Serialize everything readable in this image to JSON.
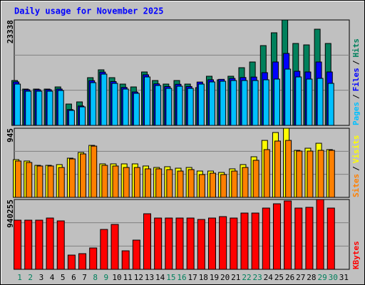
{
  "chart_data": [
    {
      "type": "bar",
      "title": "Daily usage for November 2025",
      "categories": [
        "1",
        "2",
        "3",
        "4",
        "5",
        "6",
        "7",
        "8",
        "9",
        "10",
        "11",
        "12",
        "13",
        "14",
        "15",
        "16",
        "17",
        "18",
        "19",
        "20",
        "21",
        "22",
        "23",
        "24",
        "25",
        "26",
        "27",
        "28",
        "29",
        "30",
        "31"
      ],
      "category_colors": [
        "#00805c",
        "#00805c",
        "#000000",
        "#000000",
        "#000000",
        "#000000",
        "#000000",
        "#00805c",
        "#00805c",
        "#000000",
        "#000000",
        "#000000",
        "#000000",
        "#000000",
        "#00805c",
        "#00805c",
        "#000000",
        "#000000",
        "#000000",
        "#000000",
        "#000000",
        "#00805c",
        "#00805c",
        "#000000",
        "#000000",
        "#000000",
        "#000000",
        "#000000",
        "#00805c",
        "#00805c",
        "#000000"
      ],
      "legend_separator": "/",
      "ylim": [
        0,
        23338
      ],
      "yticks": [
        23338
      ],
      "grid": true,
      "grid_divisions": 3,
      "series": [
        {
          "name": "Hits",
          "color": "#00805c",
          "values": [
            9935,
            8043,
            8043,
            8043,
            8516,
            4731,
            5204,
            10566,
            12301,
            10566,
            9147,
            8516,
            11828,
            9935,
            9147,
            9935,
            9147,
            8358,
            10881,
            10093,
            10881,
            12774,
            14035,
            17662,
            20501,
            23338,
            18136,
            17820,
            21290,
            18136,
            null
          ]
        },
        {
          "name": "Files",
          "color": "#0000ff",
          "values": [
            9620,
            7900,
            7900,
            7900,
            8050,
            3500,
            4300,
            9900,
            11800,
            9700,
            8400,
            7400,
            11200,
            9200,
            8600,
            9100,
            8600,
            9600,
            10100,
            10200,
            10400,
            10600,
            10700,
            11670,
            14035,
            15928,
            11985,
            11828,
            14035,
            11828,
            null
          ]
        },
        {
          "name": "Pages",
          "color": "#00c0ff",
          "values": [
            9147,
            7570,
            7570,
            7570,
            7727,
            3312,
            4100,
            9462,
            11354,
            9304,
            8043,
            7097,
            10724,
            8831,
            8200,
            8674,
            8200,
            9147,
            9620,
            9777,
            9935,
            9935,
            9935,
            10093,
            10251,
            12458,
            10724,
            10251,
            10408,
            9304,
            null
          ]
        }
      ]
    },
    {
      "type": "bar",
      "legend_separator": "/",
      "ylim": [
        0,
        945
      ],
      "yticks": [
        945
      ],
      "grid": true,
      "grid_divisions": 3,
      "series": [
        {
          "name": "Visits",
          "color": "#ffff00",
          "values": [
            516,
            497,
            438,
            438,
            448,
            536,
            614,
            711,
            458,
            458,
            458,
            458,
            429,
            409,
            419,
            399,
            409,
            360,
            360,
            341,
            390,
            448,
            555,
            779,
            887,
            945,
            643,
            672,
            740,
            653,
            null
          ]
        },
        {
          "name": "Sites",
          "color": "#ff8000",
          "values": [
            497,
            477,
            429,
            429,
            409,
            526,
            594,
            701,
            438,
            429,
            409,
            409,
            390,
            390,
            380,
            360,
            380,
            312,
            331,
            312,
            360,
            409,
            507,
            653,
            770,
            779,
            633,
            633,
            643,
            643,
            null
          ]
        }
      ]
    },
    {
      "type": "bar",
      "ylim": [
        0,
        940255
      ],
      "yticks": [
        940255
      ],
      "grid": true,
      "grid_divisions": 3,
      "series": [
        {
          "name": "KBytes",
          "color": "#ff0000",
          "values": [
            662000,
            662000,
            662000,
            690800,
            652400,
            191900,
            211100,
            287800,
            537300,
            604400,
            249400,
            393400,
            748400,
            690800,
            690800,
            690800,
            690800,
            671600,
            690800,
            710000,
            690800,
            757900,
            757900,
            825100,
            882700,
            921000,
            825100,
            835000,
            940255,
            825100,
            null
          ]
        }
      ]
    }
  ]
}
